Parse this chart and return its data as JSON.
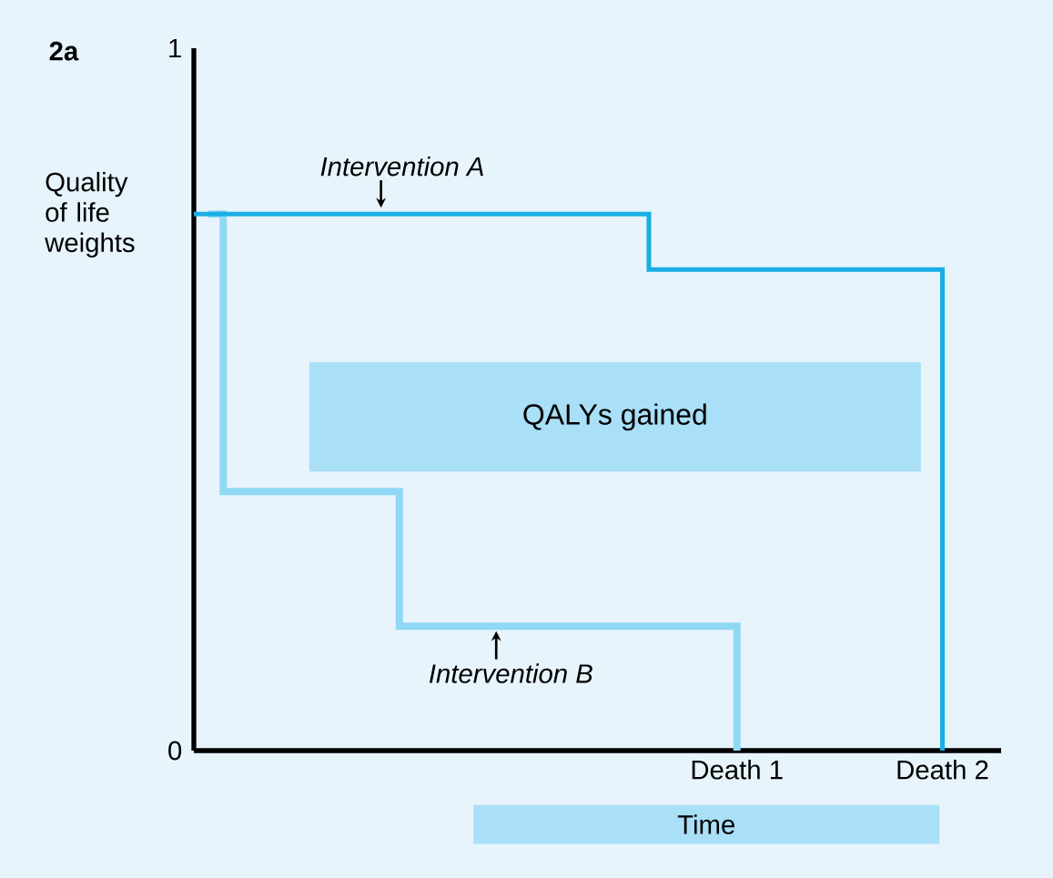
{
  "chart_data": {
    "type": "step",
    "title": "2a",
    "ylabel": "Quality of life weights",
    "xlabel": "Time",
    "annotations": [
      "QALYs gained"
    ],
    "categories": [
      null,
      null,
      null,
      null,
      null,
      null,
      null,
      null,
      null,
      null,
      null,
      null,
      null,
      null,
      null,
      null,
      null,
      null,
      null,
      null,
      null,
      null,
      null,
      null,
      null,
      null,
      null,
      null,
      null,
      null,
      null,
      null,
      null,
      null,
      null,
      null,
      null,
      "Death 1",
      null,
      null,
      null,
      null,
      null,
      null,
      null,
      null,
      null,
      null,
      null,
      null,
      null,
      "Death 2",
      null,
      null,
      null,
      null
    ],
    "ylim": [
      0,
      1
    ],
    "yticks": [
      0,
      1
    ],
    "marker": "none",
    "line_style": "solid",
    "series": [
      {
        "name": "Intervention A",
        "color": "#19aee6",
        "values": [
          0.764,
          0.764,
          0.764,
          0.764,
          0.764,
          0.764,
          0.764,
          0.764,
          0.764,
          0.764,
          0.764,
          0.764,
          0.764,
          0.764,
          0.764,
          0.764,
          0.764,
          0.764,
          0.764,
          0.764,
          0.764,
          0.764,
          0.764,
          0.764,
          0.764,
          0.764,
          0.764,
          0.764,
          0.764,
          0.764,
          0.764,
          0.685,
          0.685,
          0.685,
          0.685,
          0.685,
          0.685,
          0.685,
          0.685,
          0.685,
          0.685,
          0.685,
          0.685,
          0.685,
          0.685,
          0.685,
          0.685,
          0.685,
          0.685,
          0.685,
          0.685,
          0,
          null,
          null,
          null,
          null
        ]
      },
      {
        "name": "Intervention B",
        "color": "#8fd8f6",
        "values": [
          null,
          0.764,
          0.369,
          0.369,
          0.369,
          0.369,
          0.369,
          0.369,
          0.369,
          0.369,
          0.369,
          0.369,
          0.369,
          0.369,
          0.177,
          0.177,
          0.177,
          0.177,
          0.177,
          0.177,
          0.177,
          0.177,
          0.177,
          0.177,
          0.177,
          0.177,
          0.177,
          0.177,
          0.177,
          0.177,
          0.177,
          0.177,
          0.177,
          0.177,
          0.177,
          0.177,
          0.177,
          0,
          null,
          null,
          null,
          null,
          null,
          null,
          null,
          null,
          null,
          null,
          null,
          null,
          null,
          null,
          null,
          null,
          null,
          null
        ]
      }
    ]
  }
}
